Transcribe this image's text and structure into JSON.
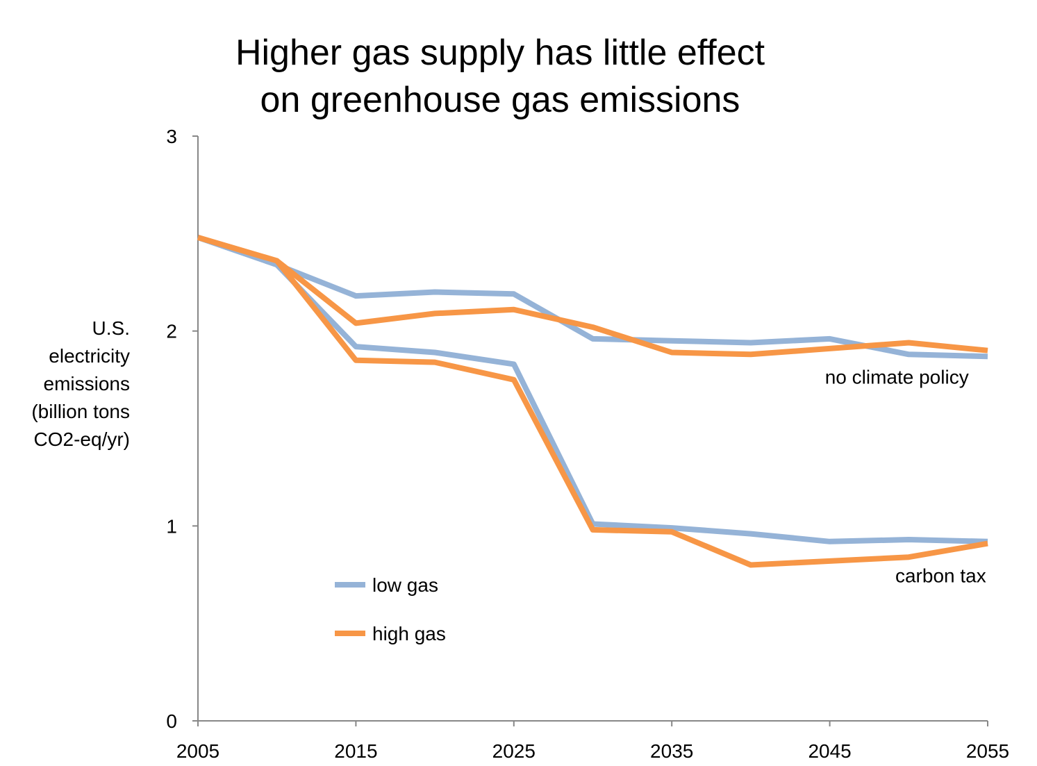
{
  "chart_data": {
    "type": "line",
    "title": [
      "Higher gas supply has little effect",
      "on greenhouse gas emissions"
    ],
    "xlabel": "",
    "ylabel": [
      "U.S.",
      "electricity",
      "emissions",
      "(billion tons",
      "CO2-eq/yr)"
    ],
    "x": [
      2005,
      2010,
      2015,
      2020,
      2025,
      2030,
      2035,
      2040,
      2045,
      2050,
      2055
    ],
    "xlim": [
      2005,
      2055
    ],
    "ylim": [
      0,
      3
    ],
    "x_ticks": [
      "2005",
      "2015",
      "2025",
      "2035",
      "2045",
      "2055"
    ],
    "y_ticks": [
      "0",
      "1",
      "2",
      "3"
    ],
    "grid": false,
    "legend_position": "lower-left inside plot",
    "legend": [
      {
        "label": "low gas",
        "color": "#95B3D7"
      },
      {
        "label": "high gas",
        "color": "#F79646"
      }
    ],
    "series": [
      {
        "legend_entry": "low gas",
        "group": "no climate policy",
        "color": "#95B3D7",
        "values": [
          2.48,
          2.34,
          2.18,
          2.2,
          2.19,
          1.96,
          1.95,
          1.94,
          1.96,
          1.88,
          1.87
        ]
      },
      {
        "legend_entry": "high gas",
        "group": "no climate policy",
        "color": "#F79646",
        "values": [
          2.48,
          2.36,
          2.04,
          2.09,
          2.11,
          2.02,
          1.89,
          1.88,
          1.91,
          1.94,
          1.9
        ]
      },
      {
        "legend_entry": "low gas",
        "group": "carbon tax",
        "color": "#95B3D7",
        "values": [
          2.48,
          2.34,
          1.92,
          1.89,
          1.83,
          1.01,
          0.99,
          0.96,
          0.92,
          0.93,
          0.92
        ]
      },
      {
        "legend_entry": "high gas",
        "group": "carbon tax",
        "color": "#F79646",
        "values": [
          2.48,
          2.36,
          1.85,
          1.84,
          1.75,
          0.98,
          0.97,
          0.8,
          0.82,
          0.84,
          0.91
        ]
      }
    ],
    "annotations": [
      {
        "text": "no climate policy",
        "x": 2053.8,
        "y": 1.73
      },
      {
        "text": "carbon tax",
        "x": 2054.9,
        "y": 0.71
      }
    ]
  }
}
